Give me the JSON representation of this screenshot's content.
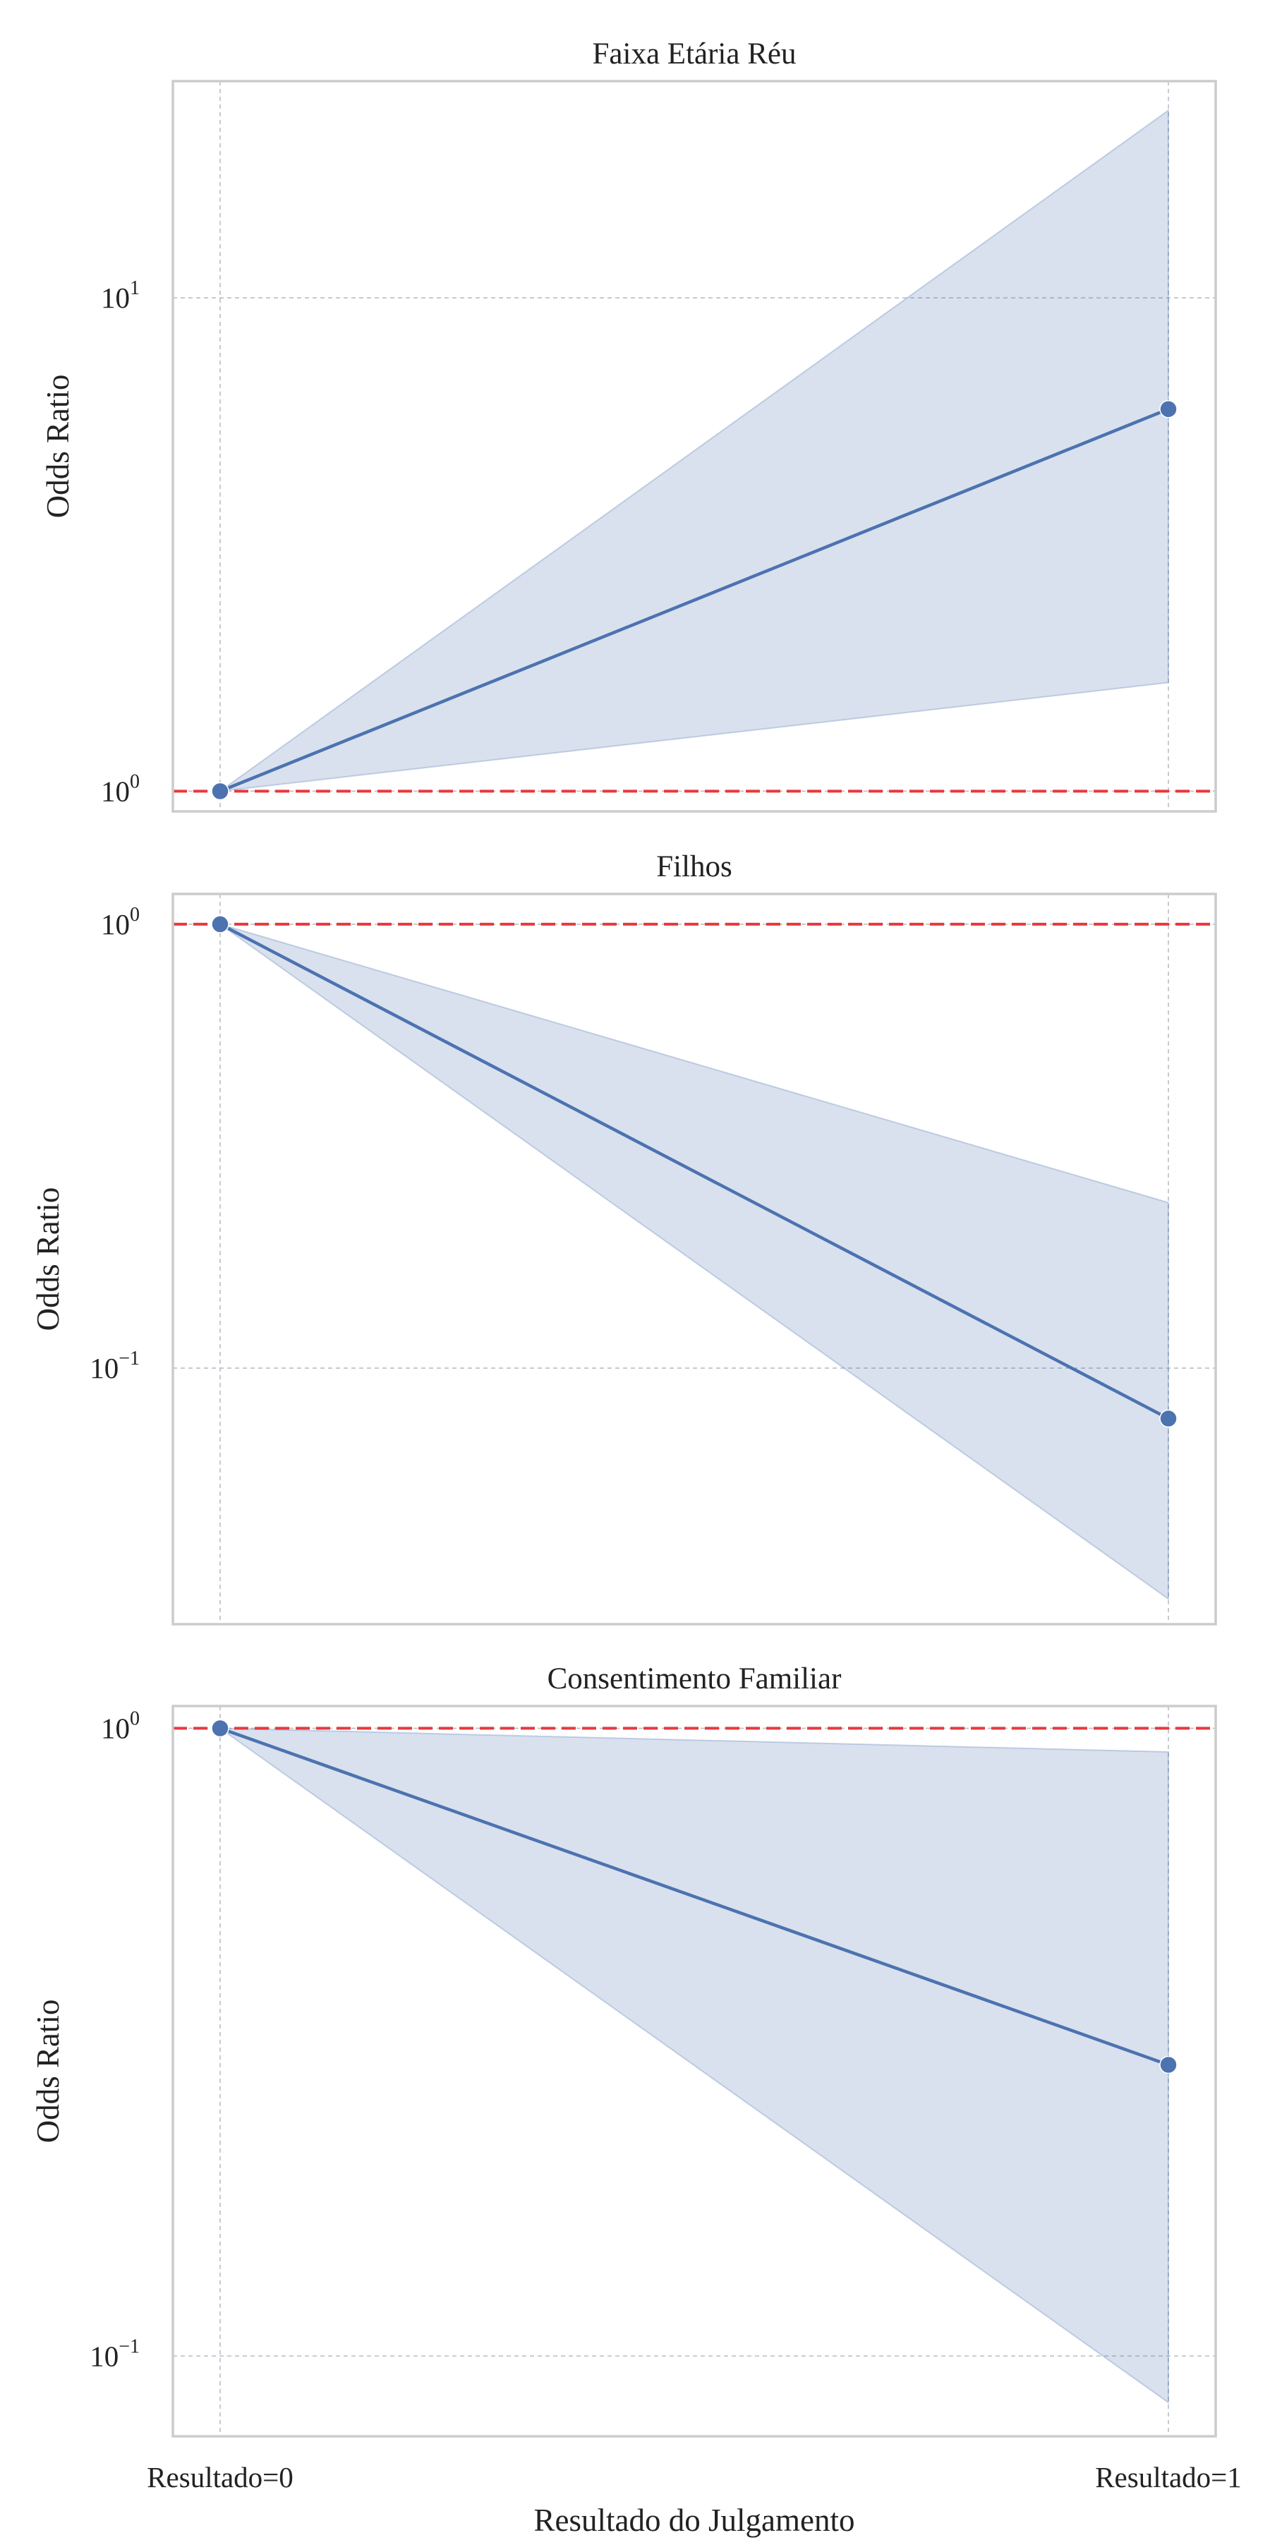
{
  "chart_data": [
    {
      "type": "line",
      "title": "Faixa Etária Réu",
      "ylabel": "Odds Ratio",
      "y_scale": "log",
      "ylim": [
        0.91,
        27.5
      ],
      "yticks": [
        {
          "value": 1,
          "base": "10",
          "exp": "0"
        },
        {
          "value": 10,
          "base": "10",
          "exp": "1"
        }
      ],
      "grid": true,
      "reference_line": {
        "y": 1,
        "color": "#e8383d",
        "style": "dashed"
      },
      "x": [
        "Resultado=0",
        "Resultado=1"
      ],
      "series": [
        {
          "values": [
            1.0,
            5.95
          ],
          "ci_lower": [
            1.0,
            1.66
          ],
          "ci_upper": [
            1.0,
            24.0
          ],
          "color": "#4c72b0"
        }
      ]
    },
    {
      "type": "line",
      "title": "Filhos",
      "ylabel": "Odds Ratio",
      "y_scale": "log",
      "ylim": [
        0.0265,
        1.17
      ],
      "yticks": [
        {
          "value": 0.1,
          "base": "10",
          "exp": "−1"
        },
        {
          "value": 1,
          "base": "10",
          "exp": "0"
        }
      ],
      "grid": true,
      "reference_line": {
        "y": 1,
        "color": "#e8383d",
        "style": "dashed"
      },
      "x": [
        "Resultado=0",
        "Resultado=1"
      ],
      "series": [
        {
          "values": [
            1.0,
            0.077
          ],
          "ci_lower": [
            1.0,
            0.0302
          ],
          "ci_upper": [
            1.0,
            0.236
          ],
          "color": "#4c72b0"
        }
      ]
    },
    {
      "type": "line",
      "title": "Consentimento Familiar",
      "ylabel": "Odds Ratio",
      "y_scale": "log",
      "ylim": [
        0.0745,
        1.085
      ],
      "yticks": [
        {
          "value": 0.1,
          "base": "10",
          "exp": "−1"
        },
        {
          "value": 1,
          "base": "10",
          "exp": "0"
        }
      ],
      "grid": true,
      "reference_line": {
        "y": 1,
        "color": "#e8383d",
        "style": "dashed"
      },
      "x": [
        "Resultado=0",
        "Resultado=1"
      ],
      "xlabel": "Resultado do Julgamento",
      "series": [
        {
          "values": [
            1.0,
            0.291
          ],
          "ci_lower": [
            1.0,
            0.0843
          ],
          "ci_upper": [
            1.0,
            0.917
          ],
          "color": "#4c72b0"
        }
      ]
    }
  ]
}
